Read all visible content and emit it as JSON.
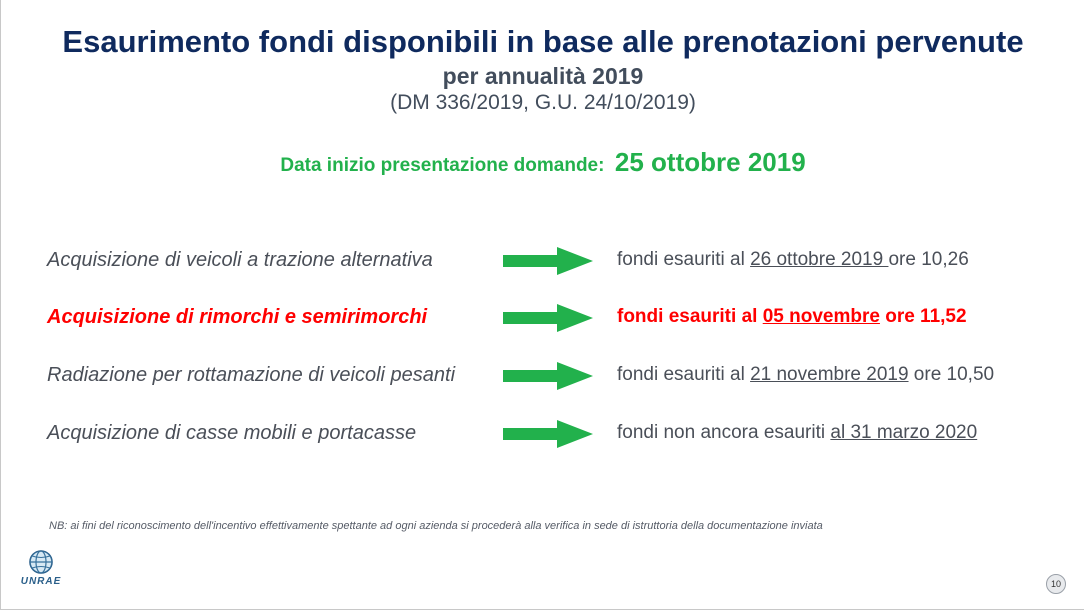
{
  "slide": {
    "title": "Esaurimento fondi disponibili in base alle prenotazioni pervenute",
    "subtitle": "per annualità 2019",
    "decree": "(DM 336/2019, G.U. 24/10/2019)",
    "start_label": "Data inizio presentazione domande:",
    "start_date": "25 ottobre 2019",
    "rows": [
      {
        "label": "Acquisizione di veicoli a trazione alternativa",
        "status_prefix": "fondi esauriti al ",
        "status_date": "26 ottobre 2019 ",
        "status_suffix": "ore 10,26"
      },
      {
        "label": "Acquisizione di rimorchi e semirimorchi",
        "status_prefix": "fondi esauriti al ",
        "status_date": "05 novembre",
        "status_suffix": " ore 11,52"
      },
      {
        "label": "Radiazione per rottamazione di veicoli pesanti",
        "status_prefix": "fondi esauriti al ",
        "status_date": "21 novembre 2019",
        "status_suffix": " ore 10,50"
      },
      {
        "label": "Acquisizione di casse mobili e portacasse",
        "status_prefix": "fondi non ancora esauriti ",
        "status_date": "al 31 marzo 2020",
        "status_suffix": ""
      }
    ],
    "note": "NB: ai fini del riconoscimento dell'incentivo effettivamente spettante ad ogni azienda si procederà alla verifica in sede di istruttoria della documentazione inviata",
    "logo_text": "UNRAE",
    "page_number": "10",
    "colors": {
      "title": "#0f2a5e",
      "accent_green": "#22b14c",
      "highlight_red": "#ff0000",
      "body_text": "#4a4f58"
    }
  }
}
